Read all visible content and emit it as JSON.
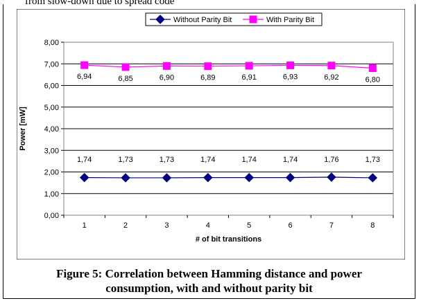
{
  "page": {
    "top_text": "from slow-down due to spread code"
  },
  "caption": {
    "line1": "Figure 5: Correlation between Hamming distance and power",
    "line2": "consumption, with and without parity bit"
  },
  "chart_data": {
    "type": "line",
    "x": [
      1,
      2,
      3,
      4,
      5,
      6,
      7,
      8
    ],
    "xlabel": "# of bit transitions",
    "ylabel": "Power [mW]",
    "ylim": [
      0,
      8
    ],
    "yticks": [
      "0,00",
      "1,00",
      "2,00",
      "3,00",
      "4,00",
      "5,00",
      "6,00",
      "7,00",
      "8,00"
    ],
    "grid": "horizontal",
    "legend_position": "top",
    "series": [
      {
        "name": "Without Parity Bit",
        "values": [
          1.74,
          1.73,
          1.73,
          1.74,
          1.74,
          1.74,
          1.76,
          1.73
        ],
        "labels": [
          "1,74",
          "1,73",
          "1,73",
          "1,74",
          "1,74",
          "1,74",
          "1,76",
          "1,73"
        ],
        "color": "#000080",
        "marker": "diamond"
      },
      {
        "name": "With Parity Bit",
        "values": [
          6.94,
          6.85,
          6.9,
          6.89,
          6.91,
          6.93,
          6.92,
          6.8
        ],
        "labels": [
          "6,94",
          "6,85",
          "6,90",
          "6,89",
          "6,91",
          "6,93",
          "6,92",
          "6,80"
        ],
        "color": "#ff00ff",
        "marker": "square"
      }
    ]
  }
}
